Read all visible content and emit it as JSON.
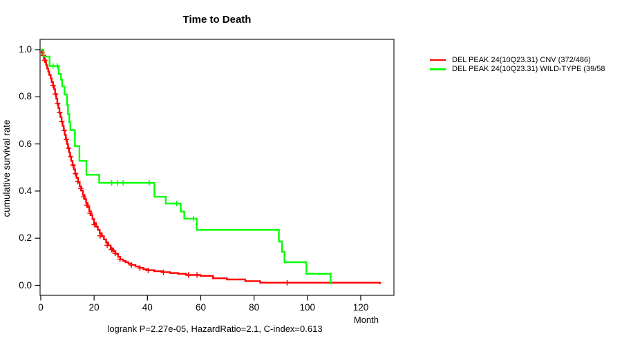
{
  "chart": {
    "title": "Time to Death",
    "ylabel": "cumulative survival rate",
    "xlabel": "Month",
    "footer": "logrank P=2.27e-05, HazardRatio=2.1, C-index=0.613"
  },
  "chart_data": {
    "type": "line",
    "subtype": "kaplan-meier-step",
    "title": "Time to Death",
    "xlabel": "Month",
    "ylabel": "cumulative survival rate",
    "xlim": [
      0,
      132
    ],
    "ylim": [
      0,
      1
    ],
    "xticks": [
      0,
      20,
      40,
      60,
      80,
      100,
      120
    ],
    "yticks": [
      0.0,
      0.2,
      0.4,
      0.6,
      0.8,
      1.0
    ],
    "ytick_labels": [
      "0.0",
      "0.2",
      "0.4",
      "0.6",
      "0.8",
      "1.0"
    ],
    "grid": false,
    "legend_position": "right-outside-top",
    "annotation": "logrank P=2.27e-05, HazardRatio=2.1, C-index=0.613",
    "series": [
      {
        "name": "DEL PEAK 24(10Q23.31) CNV (372/486)",
        "color": "#ff0000",
        "steps": [
          [
            0,
            1.0
          ],
          [
            0.4,
            0.988
          ],
          [
            0.8,
            0.976
          ],
          [
            1.2,
            0.962
          ],
          [
            1.6,
            0.948
          ],
          [
            2.0,
            0.934
          ],
          [
            2.4,
            0.92
          ],
          [
            2.8,
            0.907
          ],
          [
            3.2,
            0.893
          ],
          [
            3.7,
            0.878
          ],
          [
            4.1,
            0.863
          ],
          [
            4.6,
            0.848
          ],
          [
            5.0,
            0.832
          ],
          [
            5.4,
            0.812
          ],
          [
            5.8,
            0.792
          ],
          [
            6.2,
            0.772
          ],
          [
            6.6,
            0.752
          ],
          [
            7.0,
            0.733
          ],
          [
            7.4,
            0.714
          ],
          [
            7.8,
            0.695
          ],
          [
            8.2,
            0.676
          ],
          [
            8.6,
            0.657
          ],
          [
            9.0,
            0.638
          ],
          [
            9.4,
            0.619
          ],
          [
            9.8,
            0.6
          ],
          [
            10.2,
            0.582
          ],
          [
            10.6,
            0.564
          ],
          [
            11.0,
            0.546
          ],
          [
            11.4,
            0.528
          ],
          [
            11.9,
            0.51
          ],
          [
            12.4,
            0.492
          ],
          [
            12.9,
            0.474
          ],
          [
            13.4,
            0.456
          ],
          [
            14.0,
            0.438
          ],
          [
            14.6,
            0.42
          ],
          [
            15.2,
            0.402
          ],
          [
            15.8,
            0.384
          ],
          [
            16.4,
            0.366
          ],
          [
            17.0,
            0.349
          ],
          [
            17.6,
            0.332
          ],
          [
            18.2,
            0.315
          ],
          [
            18.8,
            0.298
          ],
          [
            19.4,
            0.281
          ],
          [
            20.0,
            0.264
          ],
          [
            20.7,
            0.249
          ],
          [
            21.4,
            0.235
          ],
          [
            22.1,
            0.221
          ],
          [
            22.9,
            0.208
          ],
          [
            23.7,
            0.195
          ],
          [
            24.5,
            0.182
          ],
          [
            25.3,
            0.169
          ],
          [
            26.2,
            0.157
          ],
          [
            27.1,
            0.145
          ],
          [
            28.0,
            0.133
          ],
          [
            29.0,
            0.121
          ],
          [
            29.8,
            0.11
          ],
          [
            30.8,
            0.104
          ],
          [
            31.8,
            0.098
          ],
          [
            32.9,
            0.092
          ],
          [
            34.0,
            0.086
          ],
          [
            35.5,
            0.08
          ],
          [
            37.0,
            0.074
          ],
          [
            38.5,
            0.068
          ],
          [
            40.0,
            0.064
          ],
          [
            42.5,
            0.06
          ],
          [
            45.5,
            0.056
          ],
          [
            48.5,
            0.052
          ],
          [
            51.5,
            0.049
          ],
          [
            54.5,
            0.044
          ],
          [
            59.9,
            0.04
          ],
          [
            64.6,
            0.03
          ],
          [
            69.8,
            0.025
          ],
          [
            76.7,
            0.018
          ],
          [
            82.3,
            0.011
          ],
          [
            127.3,
            0.005
          ]
        ],
        "censors": [
          [
            0.5,
            0.988
          ],
          [
            1.0,
            0.976
          ],
          [
            1.5,
            0.955
          ],
          [
            4.6,
            0.848
          ],
          [
            5.5,
            0.812
          ],
          [
            6.3,
            0.772
          ],
          [
            7.1,
            0.733
          ],
          [
            7.9,
            0.695
          ],
          [
            8.8,
            0.657
          ],
          [
            9.6,
            0.619
          ],
          [
            10.4,
            0.582
          ],
          [
            11.2,
            0.546
          ],
          [
            12.1,
            0.51
          ],
          [
            13.0,
            0.474
          ],
          [
            13.9,
            0.44
          ],
          [
            15.0,
            0.411
          ],
          [
            16.1,
            0.375
          ],
          [
            17.3,
            0.34
          ],
          [
            18.5,
            0.306
          ],
          [
            20.1,
            0.258
          ],
          [
            22.3,
            0.21
          ],
          [
            24.9,
            0.17
          ],
          [
            26.6,
            0.152
          ],
          [
            27.9,
            0.136
          ],
          [
            29.7,
            0.111
          ],
          [
            34.0,
            0.086
          ],
          [
            37.2,
            0.073
          ],
          [
            40.3,
            0.063
          ],
          [
            46.0,
            0.055
          ],
          [
            55.4,
            0.044
          ],
          [
            58.6,
            0.044
          ],
          [
            92.4,
            0.011
          ]
        ]
      },
      {
        "name": "DEL PEAK 24(10Q23.31) WILD-TYPE (39/58",
        "color": "#00ff00",
        "steps": [
          [
            0,
            1.0
          ],
          [
            1.0,
            0.971
          ],
          [
            3.3,
            0.931
          ],
          [
            6.7,
            0.897
          ],
          [
            7.6,
            0.873
          ],
          [
            8.0,
            0.844
          ],
          [
            8.9,
            0.81
          ],
          [
            9.8,
            0.766
          ],
          [
            10.2,
            0.727
          ],
          [
            10.7,
            0.693
          ],
          [
            11.1,
            0.659
          ],
          [
            12.8,
            0.591
          ],
          [
            14.5,
            0.528
          ],
          [
            17.1,
            0.469
          ],
          [
            21.9,
            0.435
          ],
          [
            42.6,
            0.376
          ],
          [
            46.9,
            0.347
          ],
          [
            52.5,
            0.313
          ],
          [
            53.8,
            0.283
          ],
          [
            58.5,
            0.235
          ],
          [
            89.3,
            0.186
          ],
          [
            90.5,
            0.142
          ],
          [
            91.4,
            0.098
          ],
          [
            99.6,
            0.049
          ],
          [
            108.7,
            0.004
          ]
        ],
        "censors": [
          [
            4.6,
            0.931
          ],
          [
            6.2,
            0.931
          ],
          [
            26.6,
            0.435
          ],
          [
            28.8,
            0.435
          ],
          [
            30.9,
            0.435
          ],
          [
            40.7,
            0.435
          ],
          [
            50.9,
            0.347
          ],
          [
            57.3,
            0.283
          ]
        ]
      }
    ]
  }
}
